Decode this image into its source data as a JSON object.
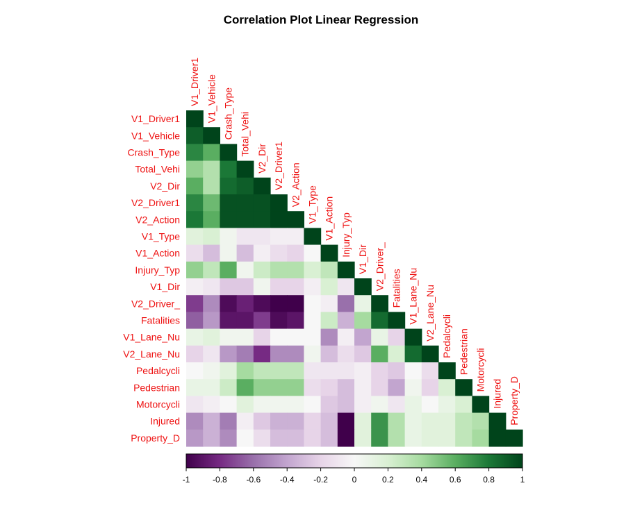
{
  "chart_data": {
    "type": "heatmap",
    "title": "Correlation Plot Linear Regression",
    "variables": [
      "V1_Driver1",
      "V1_Vehicle",
      "Crash_Type",
      "Total_Vehi",
      "V2_Dir",
      "V2_Driver1",
      "V2_Action",
      "V1_Type",
      "V1_Action",
      "Injury_Typ",
      "V1_Dir",
      "V2_Driver_",
      "Fatalities",
      "V1_Lane_Nu",
      "V2_Lane_Nu",
      "Pedalcycli",
      "Pedestrian",
      "Motorcycli",
      "Injured",
      "Property_D"
    ],
    "matrix_layout": "lower-triangle",
    "values": [
      [
        1
      ],
      [
        0.9,
        1
      ],
      [
        0.75,
        0.6,
        1
      ],
      [
        0.45,
        0.35,
        0.8,
        1
      ],
      [
        0.6,
        0.35,
        0.85,
        0.9,
        1
      ],
      [
        0.75,
        0.55,
        0.95,
        0.95,
        0.95,
        1
      ],
      [
        0.8,
        0.6,
        0.95,
        0.95,
        0.95,
        1,
        1
      ],
      [
        0.15,
        0.2,
        0.05,
        -0.1,
        -0.1,
        -0.05,
        -0.05,
        1
      ],
      [
        -0.15,
        -0.3,
        0.05,
        -0.3,
        -0.05,
        -0.15,
        -0.2,
        0,
        1
      ],
      [
        0.45,
        0.3,
        0.6,
        0.05,
        0.25,
        0.35,
        0.35,
        0.2,
        0.3,
        1
      ],
      [
        -0.05,
        -0.1,
        -0.25,
        -0.25,
        0.05,
        -0.2,
        -0.2,
        -0.05,
        0.2,
        -0.1,
        1
      ],
      [
        -0.75,
        -0.5,
        -0.95,
        -0.85,
        -0.95,
        -1,
        -1,
        0,
        -0.05,
        -0.6,
        0.1,
        1
      ],
      [
        -0.65,
        -0.45,
        -0.9,
        -0.9,
        -0.75,
        -0.95,
        -0.9,
        0,
        0.25,
        -0.35,
        0.4,
        0.85,
        1
      ],
      [
        0.1,
        0.15,
        0.05,
        0.05,
        -0.2,
        0,
        0,
        0,
        -0.5,
        -0.05,
        -0.4,
        0.1,
        -0.2,
        1
      ],
      [
        -0.2,
        -0.1,
        -0.45,
        -0.55,
        -0.8,
        -0.5,
        -0.5,
        0.05,
        -0.3,
        -0.15,
        -0.25,
        0.6,
        0.2,
        0.85,
        1
      ],
      [
        0,
        0.05,
        0.15,
        0.4,
        0.3,
        0.3,
        0.3,
        -0.1,
        -0.1,
        -0.1,
        -0.05,
        -0.2,
        -0.25,
        0,
        -0.15,
        1
      ],
      [
        0.1,
        0.1,
        0.25,
        0.6,
        0.45,
        0.45,
        0.45,
        -0.15,
        -0.2,
        -0.3,
        -0.05,
        -0.2,
        -0.4,
        0.05,
        -0.2,
        0.2,
        1
      ],
      [
        -0.1,
        -0.05,
        0,
        0.15,
        0.05,
        0.05,
        0.05,
        0,
        -0.25,
        -0.3,
        -0.05,
        0.05,
        -0.1,
        0.1,
        0,
        0.1,
        0.2,
        1
      ],
      [
        -0.5,
        -0.35,
        -0.55,
        -0.05,
        -0.25,
        -0.35,
        -0.35,
        -0.2,
        -0.3,
        -1,
        0.15,
        0.7,
        0.35,
        0.1,
        0.15,
        0.15,
        0.3,
        0.35,
        1
      ],
      [
        -0.45,
        -0.35,
        -0.5,
        0,
        -0.15,
        -0.3,
        -0.3,
        -0.2,
        -0.3,
        -1,
        0.15,
        0.7,
        0.35,
        0.1,
        0.15,
        0.15,
        0.3,
        0.4,
        1,
        1
      ]
    ],
    "colorbar": {
      "min": -1,
      "max": 1,
      "ticks": [
        "-1",
        "-0.8",
        "-0.6",
        "-0.4",
        "-0.2",
        "0",
        "0.2",
        "0.4",
        "0.6",
        "0.8",
        "1"
      ],
      "low_color": "#40004b",
      "mid_color": "#f7f7f7",
      "high_color": "#00441b"
    },
    "label_color": "#ee1111",
    "legend_position": "bottom"
  }
}
